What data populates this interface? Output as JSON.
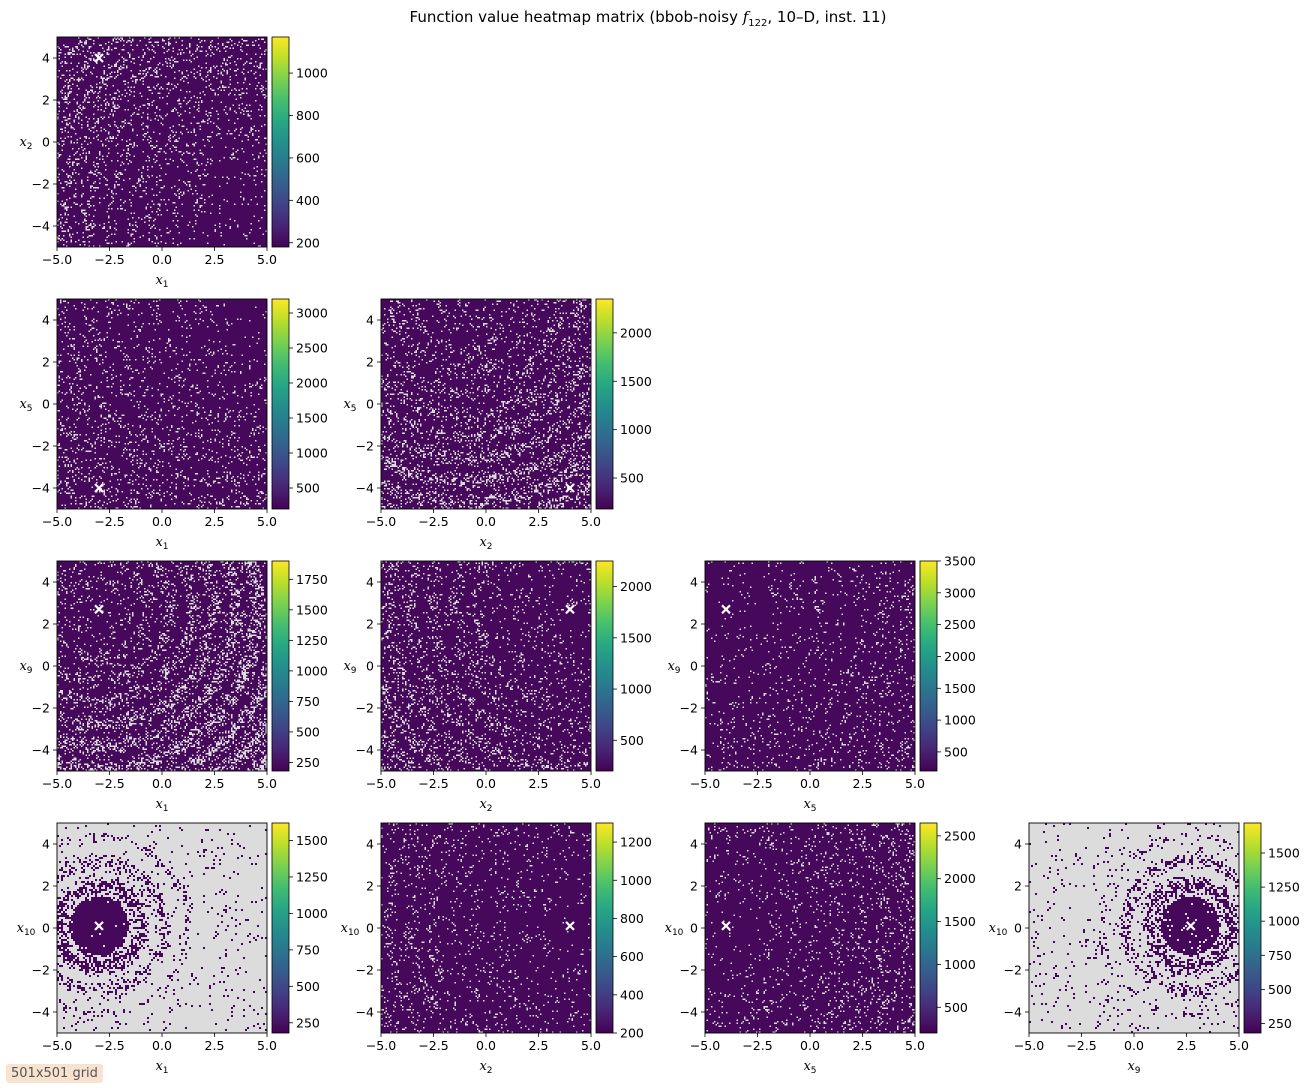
{
  "figure": {
    "title": "Function value heatmap matrix (bbob-noisy f122, 10–D, inst. 11)",
    "title_parts": {
      "before": "Function value heatmap matrix (bbob-noisy ",
      "func": "f",
      "sub": "122",
      "after": ", 10–D, inst. 11)"
    },
    "badge": "501x501 grid"
  },
  "colors": {
    "colormap": "viridis",
    "nan_fill": "#dcdcdc",
    "marker": "#ffffff"
  },
  "chart_data": [
    {
      "type": "heatmap",
      "id": "x1-x2",
      "row": 0,
      "col": 0,
      "xvar": "1",
      "yvar": "2",
      "xlim": [
        -5,
        5
      ],
      "ylim": [
        -5,
        5
      ],
      "xticks": [
        "−5.0",
        "−2.5",
        "0.0",
        "2.5",
        "5.0"
      ],
      "yticks": [
        "−4",
        "−2",
        "0",
        "2",
        "4"
      ],
      "marker": [
        -3,
        4
      ],
      "cbar_range": [
        180,
        1170
      ],
      "cbar_ticks": [
        "200",
        "400",
        "600",
        "800",
        "1000"
      ],
      "pattern": "speckle",
      "density": 0.1,
      "ring_center": [
        4,
        -4
      ]
    },
    {
      "type": "heatmap",
      "id": "x1-x5",
      "row": 1,
      "col": 0,
      "xvar": "1",
      "yvar": "5",
      "xlim": [
        -5,
        5
      ],
      "ylim": [
        -5,
        5
      ],
      "xticks": [
        "−5.0",
        "−2.5",
        "0.0",
        "2.5",
        "5.0"
      ],
      "yticks": [
        "−4",
        "−2",
        "0",
        "2",
        "4"
      ],
      "marker": [
        -3,
        -4
      ],
      "cbar_range": [
        200,
        3200
      ],
      "cbar_ticks": [
        "500",
        "1000",
        "1500",
        "2000",
        "2500",
        "3000"
      ],
      "pattern": "speckle",
      "density": 0.08,
      "ring_center": [
        3,
        5
      ]
    },
    {
      "type": "heatmap",
      "id": "x2-x5",
      "row": 1,
      "col": 1,
      "xvar": "2",
      "yvar": "5",
      "xlim": [
        -5,
        5
      ],
      "ylim": [
        -5,
        5
      ],
      "xticks": [
        "−5.0",
        "−2.5",
        "0.0",
        "2.5",
        "5.0"
      ],
      "yticks": [
        "−4",
        "−2",
        "0",
        "2",
        "4"
      ],
      "marker": [
        4,
        -4
      ],
      "cbar_range": [
        180,
        2350
      ],
      "cbar_ticks": [
        "500",
        "1000",
        "1500",
        "2000"
      ],
      "pattern": "speckle",
      "density": 0.16,
      "ring_center": [
        -1,
        5
      ]
    },
    {
      "type": "heatmap",
      "id": "x1-x9",
      "row": 2,
      "col": 0,
      "xvar": "1",
      "yvar": "9",
      "xlim": [
        -5,
        5
      ],
      "ylim": [
        -5,
        5
      ],
      "xticks": [
        "−5.0",
        "−2.5",
        "0.0",
        "2.5",
        "5.0"
      ],
      "yticks": [
        "−4",
        "−2",
        "0",
        "2",
        "4"
      ],
      "marker": [
        -3,
        2.7
      ],
      "cbar_range": [
        180,
        1900
      ],
      "cbar_ticks": [
        "250",
        "500",
        "750",
        "1000",
        "1250",
        "1500",
        "1750"
      ],
      "pattern": "speckle",
      "density": 0.22,
      "ring_center": [
        -3,
        2.7
      ]
    },
    {
      "type": "heatmap",
      "id": "x2-x9",
      "row": 2,
      "col": 1,
      "xvar": "2",
      "yvar": "9",
      "xlim": [
        -5,
        5
      ],
      "ylim": [
        -5,
        5
      ],
      "xticks": [
        "−5.0",
        "−2.5",
        "0.0",
        "2.5",
        "5.0"
      ],
      "yticks": [
        "−4",
        "−2",
        "0",
        "2",
        "4"
      ],
      "marker": [
        4,
        2.7
      ],
      "cbar_range": [
        200,
        2250
      ],
      "cbar_ticks": [
        "500",
        "1000",
        "1500",
        "2000"
      ],
      "pattern": "speckle",
      "density": 0.12,
      "ring_center": [
        4,
        2.7
      ]
    },
    {
      "type": "heatmap",
      "id": "x5-x9",
      "row": 2,
      "col": 2,
      "xvar": "5",
      "yvar": "9",
      "xlim": [
        -5,
        5
      ],
      "ylim": [
        -5,
        5
      ],
      "xticks": [
        "−5.0",
        "−2.5",
        "0.0",
        "2.5",
        "5.0"
      ],
      "yticks": [
        "−4",
        "−2",
        "0",
        "2",
        "4"
      ],
      "marker": [
        -4,
        2.7
      ],
      "cbar_range": [
        200,
        3500
      ],
      "cbar_ticks": [
        "500",
        "1000",
        "1500",
        "2000",
        "2500",
        "3000",
        "3500"
      ],
      "pattern": "speckle",
      "density": 0.06,
      "ring_center": [
        -4,
        2.7
      ]
    },
    {
      "type": "heatmap",
      "id": "x1-x10",
      "row": 3,
      "col": 0,
      "xvar": "1",
      "yvar": "10",
      "xlim": [
        -5,
        5
      ],
      "ylim": [
        -5,
        5
      ],
      "xticks": [
        "−5.0",
        "−2.5",
        "0.0",
        "2.5",
        "5.0"
      ],
      "yticks": [
        "−4",
        "−2",
        "0",
        "2",
        "4"
      ],
      "marker": [
        -3,
        0.1
      ],
      "cbar_range": [
        180,
        1620
      ],
      "cbar_ticks": [
        "250",
        "500",
        "750",
        "1000",
        "1250",
        "1500"
      ],
      "pattern": "rings",
      "density": 0.7,
      "ring_center": [
        -3,
        0.1
      ]
    },
    {
      "type": "heatmap",
      "id": "x2-x10",
      "row": 3,
      "col": 1,
      "xvar": "2",
      "yvar": "10",
      "xlim": [
        -5,
        5
      ],
      "ylim": [
        -5,
        5
      ],
      "xticks": [
        "−5.0",
        "−2.5",
        "0.0",
        "2.5",
        "5.0"
      ],
      "yticks": [
        "−4",
        "−2",
        "0",
        "2",
        "4"
      ],
      "marker": [
        4,
        0.1
      ],
      "cbar_range": [
        200,
        1300
      ],
      "cbar_ticks": [
        "200",
        "400",
        "600",
        "800",
        "1000",
        "1200"
      ],
      "pattern": "speckle",
      "density": 0.07,
      "ring_center": [
        4,
        0.1
      ]
    },
    {
      "type": "heatmap",
      "id": "x5-x10",
      "row": 3,
      "col": 2,
      "xvar": "5",
      "yvar": "10",
      "xlim": [
        -5,
        5
      ],
      "ylim": [
        -5,
        5
      ],
      "xticks": [
        "−5.0",
        "−2.5",
        "0.0",
        "2.5",
        "5.0"
      ],
      "yticks": [
        "−4",
        "−2",
        "0",
        "2",
        "4"
      ],
      "marker": [
        -4,
        0.1
      ],
      "cbar_range": [
        200,
        2650
      ],
      "cbar_ticks": [
        "500",
        "1000",
        "1500",
        "2000",
        "2500"
      ],
      "pattern": "speckle",
      "density": 0.08,
      "ring_center": [
        -4,
        0.1
      ]
    },
    {
      "type": "heatmap",
      "id": "x9-x10",
      "row": 3,
      "col": 3,
      "xvar": "9",
      "yvar": "10",
      "xlim": [
        -5,
        5
      ],
      "ylim": [
        -5,
        5
      ],
      "xticks": [
        "−5.0",
        "−2.5",
        "0.0",
        "2.5",
        "5.0"
      ],
      "yticks": [
        "−4",
        "−2",
        "0",
        "2",
        "4"
      ],
      "marker": [
        2.7,
        0.1
      ],
      "cbar_range": [
        180,
        1720
      ],
      "cbar_ticks": [
        "250",
        "500",
        "750",
        "1000",
        "1250",
        "1500"
      ],
      "pattern": "rings",
      "density": 0.7,
      "ring_center": [
        2.7,
        0.1
      ]
    }
  ]
}
